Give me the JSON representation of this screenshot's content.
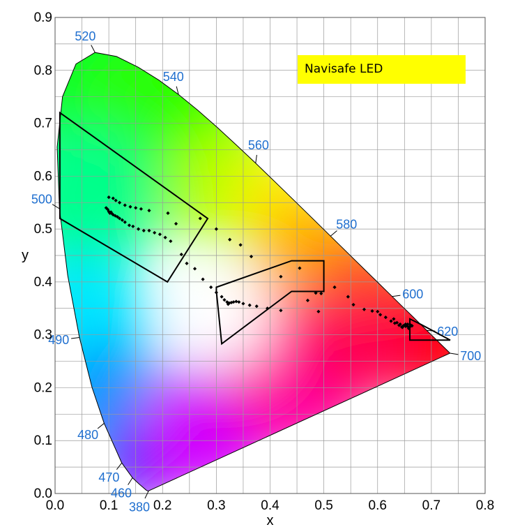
{
  "chart_data": {
    "type": "scatter",
    "title": "",
    "legend_label": "Navisafe LED",
    "xlabel": "x",
    "ylabel": "y",
    "xlim": [
      0,
      0.8
    ],
    "ylim": [
      0,
      0.9
    ],
    "x_ticks": [
      "0.0",
      "0.1",
      "0.2",
      "0.3",
      "0.4",
      "0.5",
      "0.6",
      "0.7",
      "0.8"
    ],
    "y_ticks": [
      "0.0",
      "0.1",
      "0.2",
      "0.3",
      "0.4",
      "0.5",
      "0.6",
      "0.7",
      "0.8",
      "0.9"
    ],
    "grid": true,
    "spectral_locus": [
      [
        0.1741,
        0.005
      ],
      [
        0.1733,
        0.0048
      ],
      [
        0.1726,
        0.0048
      ],
      [
        0.1714,
        0.0051
      ],
      [
        0.1689,
        0.0069
      ],
      [
        0.1644,
        0.0109
      ],
      [
        0.1566,
        0.0177
      ],
      [
        0.144,
        0.0297
      ],
      [
        0.1241,
        0.0578
      ],
      [
        0.0913,
        0.1327
      ],
      [
        0.0687,
        0.2007
      ],
      [
        0.0454,
        0.295
      ],
      [
        0.0235,
        0.4127
      ],
      [
        0.0082,
        0.5384
      ],
      [
        0.0039,
        0.6548
      ],
      [
        0.0139,
        0.7502
      ],
      [
        0.0389,
        0.812
      ],
      [
        0.0743,
        0.8338
      ],
      [
        0.1142,
        0.8262
      ],
      [
        0.1547,
        0.8059
      ],
      [
        0.1929,
        0.7816
      ],
      [
        0.2296,
        0.7543
      ],
      [
        0.2658,
        0.7243
      ],
      [
        0.3016,
        0.6923
      ],
      [
        0.3373,
        0.6589
      ],
      [
        0.3731,
        0.6245
      ],
      [
        0.4087,
        0.5896
      ],
      [
        0.4441,
        0.5547
      ],
      [
        0.4788,
        0.5202
      ],
      [
        0.5125,
        0.4866
      ],
      [
        0.5448,
        0.4544
      ],
      [
        0.5752,
        0.4242
      ],
      [
        0.6029,
        0.3965
      ],
      [
        0.627,
        0.3725
      ],
      [
        0.6482,
        0.3514
      ],
      [
        0.6658,
        0.334
      ],
      [
        0.6801,
        0.3197
      ],
      [
        0.6915,
        0.3083
      ],
      [
        0.7006,
        0.2993
      ],
      [
        0.7079,
        0.292
      ],
      [
        0.714,
        0.2859
      ],
      [
        0.719,
        0.2809
      ],
      [
        0.723,
        0.277
      ],
      [
        0.726,
        0.274
      ],
      [
        0.7283,
        0.2717
      ],
      [
        0.73,
        0.27
      ],
      [
        0.7347,
        0.2653
      ]
    ],
    "wavelength_labels": [
      {
        "nm": "380",
        "x": 0.1741,
        "y": 0.005
      },
      {
        "nm": "460",
        "x": 0.144,
        "y": 0.0297
      },
      {
        "nm": "470",
        "x": 0.1241,
        "y": 0.0578
      },
      {
        "nm": "480",
        "x": 0.0913,
        "y": 0.1327
      },
      {
        "nm": "490",
        "x": 0.0454,
        "y": 0.295
      },
      {
        "nm": "500",
        "x": 0.0082,
        "y": 0.5384
      },
      {
        "nm": "520",
        "x": 0.0743,
        "y": 0.8338
      },
      {
        "nm": "540",
        "x": 0.2296,
        "y": 0.7543
      },
      {
        "nm": "560",
        "x": 0.3731,
        "y": 0.6245
      },
      {
        "nm": "580",
        "x": 0.5125,
        "y": 0.4866
      },
      {
        "nm": "600",
        "x": 0.627,
        "y": 0.3725
      },
      {
        "nm": "620",
        "x": 0.6915,
        "y": 0.3083
      },
      {
        "nm": "700",
        "x": 0.7347,
        "y": 0.2653
      }
    ],
    "regions": [
      {
        "name": "green",
        "points": [
          [
            0.009,
            0.72
          ],
          [
            0.284,
            0.52
          ],
          [
            0.209,
            0.4
          ],
          [
            0.009,
            0.52
          ]
        ]
      },
      {
        "name": "white",
        "points": [
          [
            0.3,
            0.39
          ],
          [
            0.44,
            0.44
          ],
          [
            0.5,
            0.44
          ],
          [
            0.5,
            0.382
          ],
          [
            0.44,
            0.382
          ],
          [
            0.31,
            0.283
          ],
          [
            0.3,
            0.383
          ]
        ]
      },
      {
        "name": "red",
        "points": [
          [
            0.66,
            0.33
          ],
          [
            0.68,
            0.32
          ],
          [
            0.735,
            0.29
          ],
          [
            0.66,
            0.29
          ]
        ]
      }
    ],
    "points": [
      [
        0.1,
        0.56
      ],
      [
        0.108,
        0.558
      ],
      [
        0.113,
        0.554
      ],
      [
        0.12,
        0.55
      ],
      [
        0.13,
        0.545
      ],
      [
        0.14,
        0.542
      ],
      [
        0.15,
        0.54
      ],
      [
        0.16,
        0.538
      ],
      [
        0.175,
        0.535
      ],
      [
        0.21,
        0.53
      ],
      [
        0.225,
        0.51
      ],
      [
        0.095,
        0.54
      ],
      [
        0.098,
        0.537
      ],
      [
        0.1,
        0.533
      ],
      [
        0.102,
        0.53
      ],
      [
        0.104,
        0.532
      ],
      [
        0.106,
        0.529
      ],
      [
        0.108,
        0.527
      ],
      [
        0.112,
        0.525
      ],
      [
        0.116,
        0.523
      ],
      [
        0.12,
        0.52
      ],
      [
        0.125,
        0.517
      ],
      [
        0.13,
        0.513
      ],
      [
        0.138,
        0.507
      ],
      [
        0.145,
        0.505
      ],
      [
        0.155,
        0.5
      ],
      [
        0.165,
        0.497
      ],
      [
        0.175,
        0.497
      ],
      [
        0.185,
        0.493
      ],
      [
        0.195,
        0.49
      ],
      [
        0.205,
        0.484
      ],
      [
        0.215,
        0.477
      ],
      [
        0.235,
        0.452
      ],
      [
        0.245,
        0.435
      ],
      [
        0.26,
        0.425
      ],
      [
        0.275,
        0.405
      ],
      [
        0.29,
        0.39
      ],
      [
        0.3,
        0.38
      ],
      [
        0.31,
        0.372
      ],
      [
        0.315,
        0.366
      ],
      [
        0.32,
        0.362
      ],
      [
        0.322,
        0.358
      ],
      [
        0.324,
        0.36
      ],
      [
        0.328,
        0.361
      ],
      [
        0.332,
        0.362
      ],
      [
        0.337,
        0.363
      ],
      [
        0.342,
        0.362
      ],
      [
        0.35,
        0.359
      ],
      [
        0.362,
        0.356
      ],
      [
        0.375,
        0.354
      ],
      [
        0.395,
        0.35
      ],
      [
        0.42,
        0.346
      ],
      [
        0.27,
        0.52
      ],
      [
        0.3,
        0.5
      ],
      [
        0.325,
        0.48
      ],
      [
        0.345,
        0.47
      ],
      [
        0.365,
        0.448
      ],
      [
        0.42,
        0.41
      ],
      [
        0.455,
        0.426
      ],
      [
        0.47,
        0.365
      ],
      [
        0.485,
        0.379
      ],
      [
        0.495,
        0.378
      ],
      [
        0.49,
        0.344
      ],
      [
        0.52,
        0.39
      ],
      [
        0.545,
        0.372
      ],
      [
        0.555,
        0.357
      ],
      [
        0.575,
        0.348
      ],
      [
        0.59,
        0.345
      ],
      [
        0.6,
        0.344
      ],
      [
        0.605,
        0.338
      ],
      [
        0.615,
        0.333
      ],
      [
        0.625,
        0.326
      ],
      [
        0.63,
        0.33
      ],
      [
        0.632,
        0.322
      ],
      [
        0.636,
        0.323
      ],
      [
        0.64,
        0.318
      ],
      [
        0.642,
        0.32
      ],
      [
        0.645,
        0.315
      ],
      [
        0.648,
        0.317
      ],
      [
        0.65,
        0.318
      ],
      [
        0.652,
        0.316
      ],
      [
        0.655,
        0.317
      ],
      [
        0.657,
        0.315
      ],
      [
        0.658,
        0.312
      ],
      [
        0.66,
        0.315
      ],
      [
        0.662,
        0.318
      ],
      [
        0.664,
        0.317
      ],
      [
        0.646,
        0.314
      ],
      [
        0.652,
        0.32
      ],
      [
        0.656,
        0.32
      ]
    ]
  }
}
